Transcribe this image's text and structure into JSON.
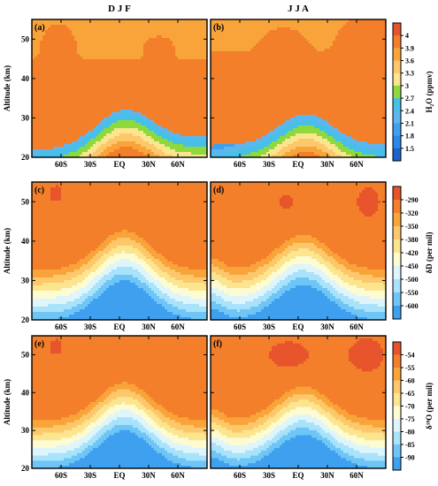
{
  "column_titles": [
    "D J F",
    "J J A"
  ],
  "chart_data": {
    "type": "heatmap",
    "panels": [
      {
        "label": "(a)",
        "variable": "h2o",
        "season": "D J F",
        "pattern": "djf_h2o"
      },
      {
        "label": "(b)",
        "variable": "h2o",
        "season": "J J A",
        "pattern": "jja_h2o"
      },
      {
        "label": "(c)",
        "variable": "dD",
        "season": "D J F",
        "pattern": "djf_dD"
      },
      {
        "label": "(d)",
        "variable": "dD",
        "season": "J J A",
        "pattern": "jja_dD"
      },
      {
        "label": "(e)",
        "variable": "d18O",
        "season": "D J F",
        "pattern": "djf_d18O"
      },
      {
        "label": "(f)",
        "variable": "d18O",
        "season": "J J A",
        "pattern": "jja_d18O"
      }
    ],
    "x_axis": {
      "range": [
        -90,
        90
      ],
      "ticks": [
        -60,
        -30,
        0,
        30,
        60
      ],
      "tick_labels": [
        "60S",
        "30S",
        "EQ",
        "30N",
        "60N"
      ]
    },
    "y_axis": {
      "label": "Altitude (km)",
      "range": [
        20,
        55
      ],
      "ticks": [
        20,
        30,
        40,
        50
      ],
      "tick_labels": [
        "20",
        "30",
        "40",
        "50"
      ]
    },
    "colorbars": [
      {
        "variable": "h2o",
        "label": "H₂O (ppmv)",
        "levels": [
          "4",
          "3.9",
          "3.6",
          "3.3",
          "3",
          "2.7",
          "2.4",
          "2.1",
          "1.8",
          "1.5"
        ],
        "level_values": [
          4.0,
          3.9,
          3.6,
          3.3,
          3.0,
          2.7,
          2.4,
          2.1,
          1.8,
          1.5
        ],
        "colors": [
          "#e8542b",
          "#f47f2b",
          "#f9a43a",
          "#fcc86b",
          "#fce58f",
          "#8fd93d",
          "#46c0e8",
          "#5eb6ef",
          "#3fa0f0",
          "#2888ec",
          "#1f63c8"
        ]
      },
      {
        "variable": "dD",
        "label": "δD (per mil)",
        "levels": [
          "-290",
          "-320",
          "-350",
          "-380",
          "-420",
          "-450",
          "-500",
          "-550",
          "-600"
        ],
        "level_values": [
          -290,
          -320,
          -350,
          -380,
          -420,
          -450,
          -500,
          -550,
          -600
        ],
        "colors": [
          "#e8542b",
          "#f47f2b",
          "#f9a43a",
          "#fcc86b",
          "#fce58f",
          "#fdfbd2",
          "#def5fb",
          "#a9e3fb",
          "#6fc6f6",
          "#3fa0f0"
        ]
      },
      {
        "variable": "d18O",
        "label": "δ¹⁸O (per mil)",
        "levels": [
          "-54",
          "-55",
          "-60",
          "-65",
          "-70",
          "-75",
          "-80",
          "-85",
          "-90"
        ],
        "level_values": [
          -54,
          -55,
          -60,
          -65,
          -70,
          -75,
          -80,
          -85,
          -90
        ],
        "colors": [
          "#e8542b",
          "#f47f2b",
          "#f9a43a",
          "#fcc86b",
          "#fce58f",
          "#fdfbd2",
          "#def5fb",
          "#a9e3fb",
          "#6fc6f6",
          "#3fa0f0"
        ]
      }
    ]
  }
}
